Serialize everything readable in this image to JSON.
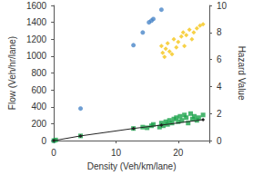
{
  "chart_data": {
    "type": "scatter",
    "x_label": "Density (Veh/km/lane)",
    "y_label": "Flow (Veh/hr/lane)",
    "y2_label": "Hazard Value",
    "xlim": [
      0,
      25
    ],
    "xticks": [
      0,
      10,
      20
    ],
    "ylim": [
      0,
      1600
    ],
    "yticks": [
      0,
      200,
      400,
      600,
      800,
      1000,
      1200,
      1400,
      1600
    ],
    "y2lim": [
      0,
      10
    ],
    "y2ticks": [
      0,
      2,
      4,
      6,
      8,
      10
    ],
    "grid": false,
    "series": [
      {
        "type": "scatter",
        "color": "#4a86c8",
        "marker": "circle",
        "x": [
          0,
          4.3,
          12.8,
          14.3,
          15.3,
          15.7,
          16,
          17.3
        ],
        "values": [
          0,
          380,
          1130,
          1280,
          1400,
          1420,
          1440,
          1550
        ]
      },
      {
        "type": "scatter",
        "color": "#f5c518",
        "marker": "diamond",
        "axis": "y2",
        "x": [
          17.3,
          17.5,
          17.8,
          18,
          18.3,
          18.6,
          19,
          19.3,
          19.7,
          20,
          20.5,
          20.8,
          21,
          21.3,
          21.8,
          22.2,
          22.5,
          23,
          23.5,
          24
        ],
        "values": [
          7.0,
          6.5,
          6.2,
          6.8,
          7.2,
          6.6,
          6.4,
          7.5,
          6.9,
          7.3,
          7.7,
          8.0,
          7.0,
          7.8,
          8.2,
          7.5,
          8.0,
          8.3,
          8.5,
          8.6
        ]
      },
      {
        "type": "scatter",
        "color": "#1aa34a",
        "marker": "square",
        "axis": "y2",
        "x": [
          0,
          0.3,
          4.3,
          12.8,
          14.3,
          15,
          15.7,
          16,
          17,
          17.3,
          17.6,
          18,
          18.3,
          18.6,
          19,
          19.3,
          19.7,
          20,
          20.3,
          20.6,
          21,
          21.3,
          21.6,
          22,
          22.3,
          22.6,
          23,
          23.3,
          24
        ],
        "values": [
          0,
          0.05,
          0.35,
          0.9,
          1.0,
          0.95,
          1.1,
          1.2,
          1.0,
          1.3,
          1.1,
          1.4,
          1.2,
          1.5,
          1.3,
          1.6,
          1.7,
          1.4,
          1.8,
          1.5,
          1.9,
          1.7,
          1.3,
          2.0,
          1.6,
          1.8,
          1.5,
          1.7,
          1.9
        ]
      },
      {
        "type": "line",
        "color": "#222222",
        "marker": "diamond",
        "line_style": "solid",
        "axis": "y2",
        "x": [
          0,
          4.3,
          12.8,
          17.3,
          24
        ],
        "values": [
          0,
          0.35,
          0.9,
          1.15,
          1.55
        ]
      }
    ]
  }
}
